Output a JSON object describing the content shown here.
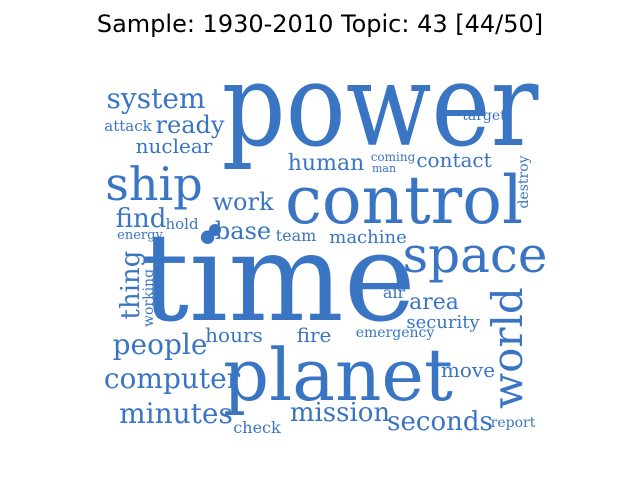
{
  "title": "Sample: 1930-2010 Topic: 43 [44/50]",
  "word_color": "#3a75c4",
  "words": [
    "power",
    "time",
    "control",
    "planet",
    "space",
    "ship",
    "world",
    "system",
    "computer",
    "minutes",
    "people",
    "mission",
    "seconds",
    "ready",
    "work",
    "base",
    "find",
    "human",
    "contact",
    "machine",
    "area",
    "thing",
    "security",
    "move",
    "nuclear",
    "hours",
    "fire",
    "attack",
    "target",
    "coming",
    "man",
    "destroy",
    "team",
    "air",
    "working",
    "emergency",
    "hold",
    "energy",
    "check",
    "report"
  ]
}
